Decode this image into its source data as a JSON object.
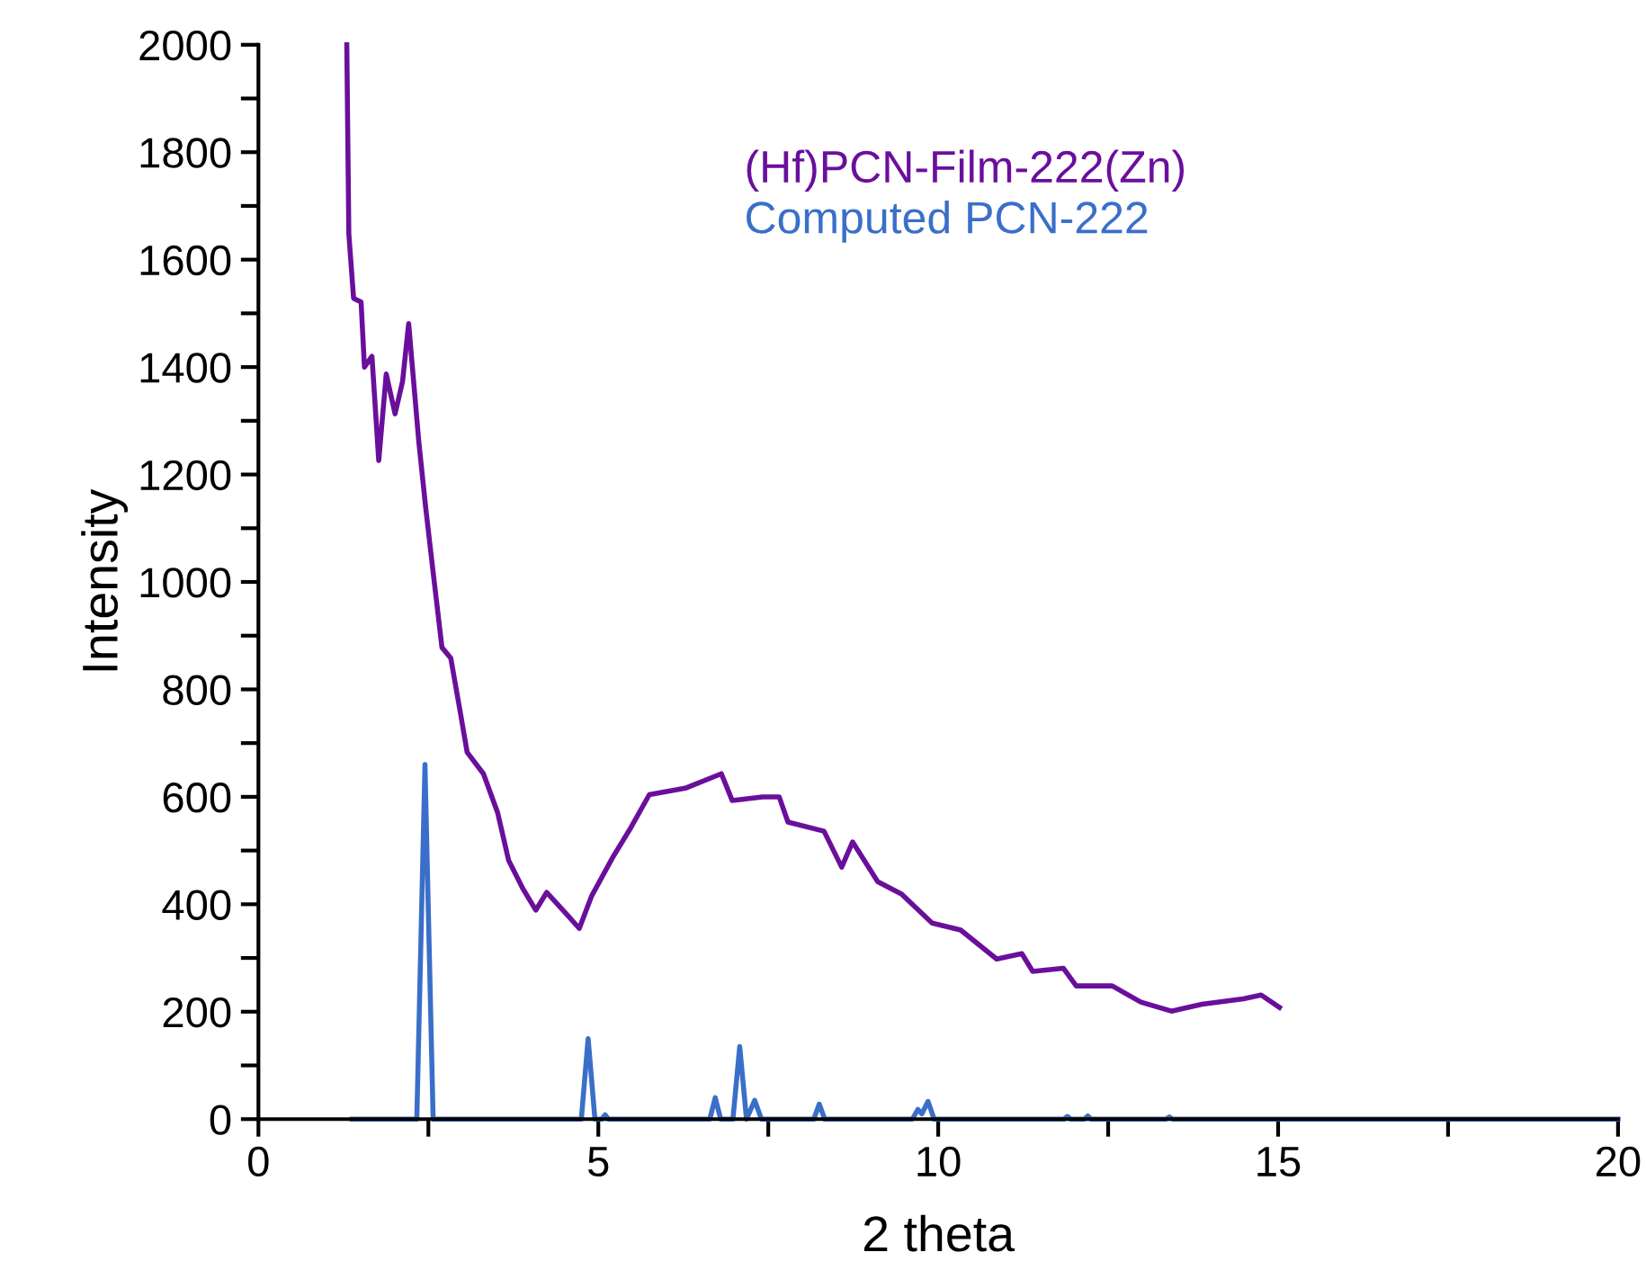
{
  "chart_data": {
    "type": "line",
    "xlabel": "2 theta",
    "ylabel": "Intensity",
    "xlim": [
      0,
      20
    ],
    "ylim": [
      0,
      2000
    ],
    "xticks": [
      0,
      {
        "value": 2.5,
        "label": null
      },
      5,
      {
        "value": 7.5,
        "label": null
      },
      10,
      {
        "value": 12.5,
        "label": null
      },
      15,
      {
        "value": 17.5,
        "label": null
      },
      20
    ],
    "yticks": [
      0,
      {
        "value": 100,
        "label": null
      },
      200,
      {
        "value": 300,
        "label": null
      },
      400,
      {
        "value": 500,
        "label": null
      },
      600,
      {
        "value": 700,
        "label": null
      },
      800,
      {
        "value": 900,
        "label": null
      },
      1000,
      {
        "value": 1100,
        "label": null
      },
      1200,
      {
        "value": 1300,
        "label": null
      },
      1400,
      {
        "value": 1500,
        "label": null
      },
      1600,
      {
        "value": 1700,
        "label": null
      },
      1800,
      {
        "value": 1900,
        "label": null
      },
      2000
    ],
    "grid": false,
    "legend": "top",
    "marker": "none",
    "line_style": "solid",
    "series": [
      {
        "name": "(Hf)PCN-Film-222(Zn)",
        "color": "#6a0f9c",
        "x": [
          1.3,
          1.33,
          1.4,
          1.51,
          1.56,
          1.67,
          1.77,
          1.88,
          2.01,
          2.12,
          2.21,
          2.36,
          2.46,
          2.57,
          2.7,
          2.83,
          2.97,
          3.07,
          3.31,
          3.52,
          3.68,
          3.89,
          4.08,
          4.24,
          4.53,
          4.72,
          4.9,
          5.22,
          5.48,
          5.75,
          6.28,
          6.81,
          6.97,
          7.42,
          7.66,
          7.79,
          8.32,
          8.58,
          8.74,
          9.11,
          9.46,
          9.91,
          10.33,
          10.86,
          11.23,
          11.39,
          11.84,
          12.03,
          12.56,
          12.98,
          13.43,
          13.88,
          14.49,
          14.75,
          15.02
        ],
        "values": [
          2000,
          1648,
          1528,
          1521,
          1400,
          1420,
          1226,
          1387,
          1313,
          1373,
          1481,
          1260,
          1139,
          1018,
          878,
          858,
          757,
          683,
          643,
          570,
          482,
          429,
          389,
          422,
          382,
          355,
          415,
          489,
          543,
          604,
          616,
          643,
          593,
          600,
          600,
          553,
          536,
          469,
          516,
          442,
          419,
          365,
          352,
          298,
          308,
          275,
          281,
          248,
          248,
          218,
          201,
          214,
          224,
          231,
          208
        ]
      },
      {
        "name": "Computed PCN-222",
        "color": "#3a6fc9",
        "x": [
          1.38,
          2.33,
          2.45,
          2.57,
          4.75,
          4.85,
          4.95,
          5.05,
          5.1,
          5.15,
          6.64,
          6.72,
          6.8,
          6.98,
          7.08,
          7.18,
          7.3,
          7.4,
          8.17,
          8.25,
          8.33,
          9.62,
          9.7,
          9.76,
          9.85,
          9.94,
          11.85,
          11.9,
          11.95,
          12.15,
          12.2,
          12.25,
          13.35,
          13.4,
          13.45,
          20
        ],
        "values": [
          0,
          0,
          660,
          0,
          0,
          150,
          0,
          0,
          8,
          0,
          0,
          40,
          0,
          0,
          135,
          0,
          35,
          0,
          0,
          28,
          0,
          0,
          18,
          10,
          33,
          0,
          0,
          5,
          0,
          0,
          6,
          0,
          0,
          4,
          0,
          0
        ]
      }
    ]
  }
}
